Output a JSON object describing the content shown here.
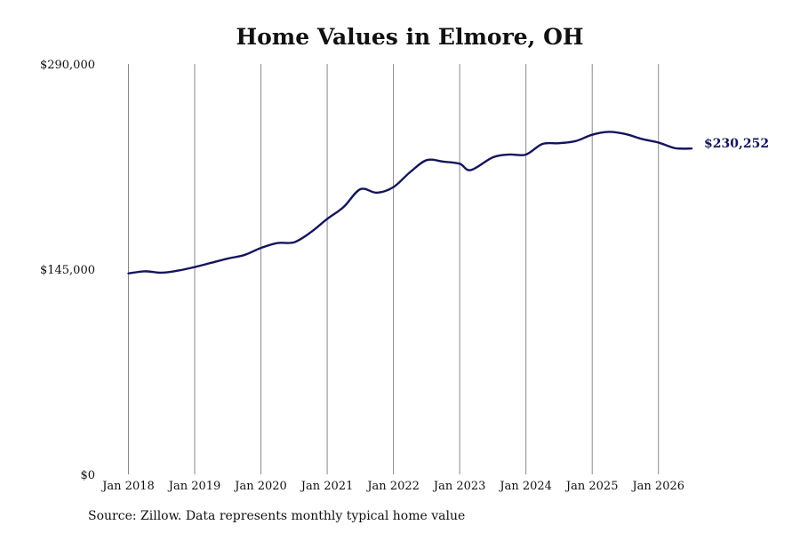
{
  "chart_data": {
    "type": "line",
    "title": "Home Values in Elmore, OH",
    "xlabel": "",
    "ylabel": "",
    "ylim": [
      0,
      290000
    ],
    "yticks": [
      0,
      145000,
      290000
    ],
    "ytick_labels": [
      "$0",
      "$145,000",
      "$290,000"
    ],
    "xlim": [
      "2018-01",
      "2026-07"
    ],
    "xtick_labels": [
      "Jan 2018",
      "Jan 2019",
      "Jan 2020",
      "Jan 2021",
      "Jan 2022",
      "Jan 2023",
      "Jan 2024",
      "Jan 2025",
      "Jan 2026"
    ],
    "grid": "vertical lines at January of each year",
    "legend": "none",
    "end_label": "$230,252",
    "line_color": "#14145e",
    "series": [
      {
        "x": [
          "2018-01",
          "2018-04",
          "2018-07",
          "2018-10",
          "2019-01",
          "2019-04",
          "2019-07",
          "2019-10",
          "2020-01",
          "2020-04",
          "2020-07",
          "2020-10",
          "2021-01",
          "2021-04",
          "2021-07",
          "2021-10",
          "2022-01",
          "2022-04",
          "2022-07",
          "2022-10",
          "2023-01",
          "2023-03",
          "2023-07",
          "2023-10",
          "2024-01",
          "2024-04",
          "2024-07",
          "2024-10",
          "2025-01",
          "2025-04",
          "2025-07",
          "2025-10",
          "2026-01",
          "2026-04",
          "2026-07"
        ],
        "values": [
          142000,
          143500,
          142500,
          144000,
          146500,
          149500,
          152500,
          155000,
          160000,
          163500,
          164000,
          171000,
          180500,
          189000,
          201500,
          199000,
          203000,
          213500,
          222000,
          221000,
          219500,
          215000,
          224000,
          226000,
          226000,
          233500,
          234000,
          235500,
          240000,
          242000,
          240500,
          237000,
          234500,
          230500,
          230252
        ]
      }
    ]
  },
  "source_note": "Source: Zillow. Data represents monthly typical home value"
}
